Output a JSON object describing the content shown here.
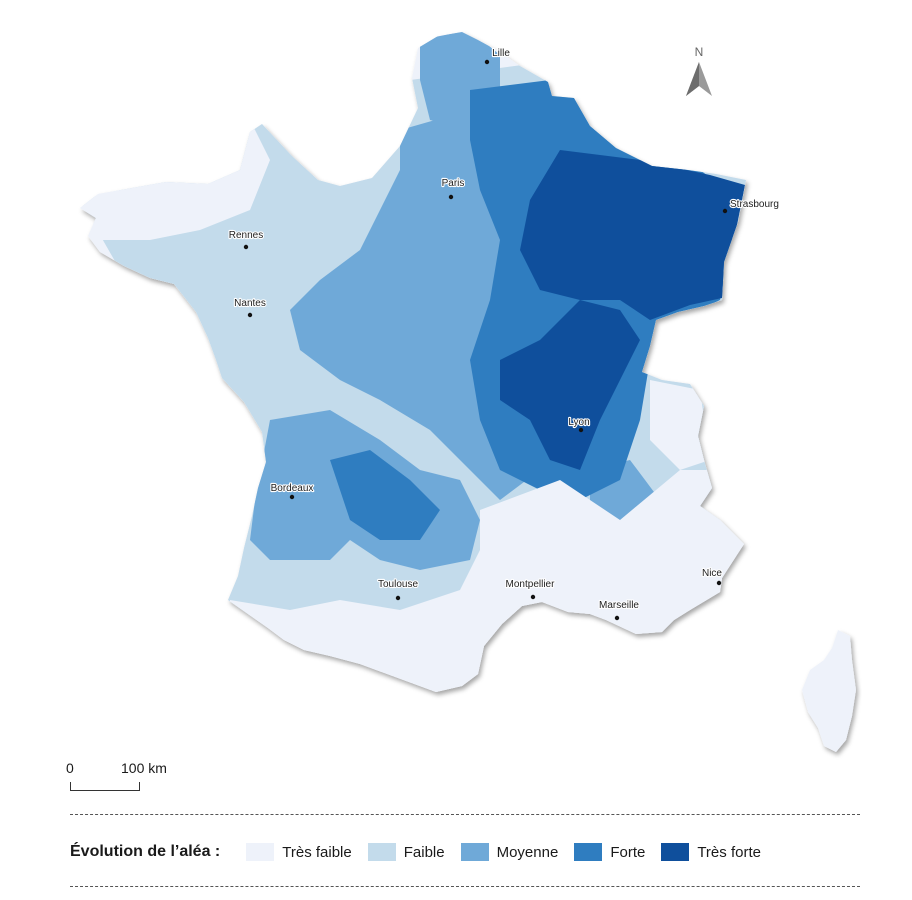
{
  "colors": {
    "tres_faible": "#eef2fa",
    "faible": "#c3dbeb",
    "moyenne": "#6fa9d8",
    "forte": "#2f7dc0",
    "tres_forte": "#0f4f9c",
    "coast_shadow": "#b9bcc2"
  },
  "north_arrow": {
    "letter": "N"
  },
  "cities": [
    {
      "id": "lille",
      "name": "Lille"
    },
    {
      "id": "paris",
      "name": "Paris"
    },
    {
      "id": "strasbourg",
      "name": "Strasbourg"
    },
    {
      "id": "rennes",
      "name": "Rennes"
    },
    {
      "id": "nantes",
      "name": "Nantes"
    },
    {
      "id": "lyon",
      "name": "Lyon"
    },
    {
      "id": "bordeaux",
      "name": "Bordeaux"
    },
    {
      "id": "toulouse",
      "name": "Toulouse"
    },
    {
      "id": "montpellier",
      "name": "Montpellier"
    },
    {
      "id": "marseille",
      "name": "Marseille"
    },
    {
      "id": "nice",
      "name": "Nice"
    }
  ],
  "scale_bar": {
    "zero": "0",
    "distance": "100 km"
  },
  "legend": {
    "title": "Évolution de l’aléa :",
    "items": [
      {
        "label": "Très faible",
        "color_key": "tres_faible"
      },
      {
        "label": "Faible",
        "color_key": "faible"
      },
      {
        "label": "Moyenne",
        "color_key": "moyenne"
      },
      {
        "label": "Forte",
        "color_key": "forte"
      },
      {
        "label": "Très forte",
        "color_key": "tres_forte"
      }
    ]
  }
}
